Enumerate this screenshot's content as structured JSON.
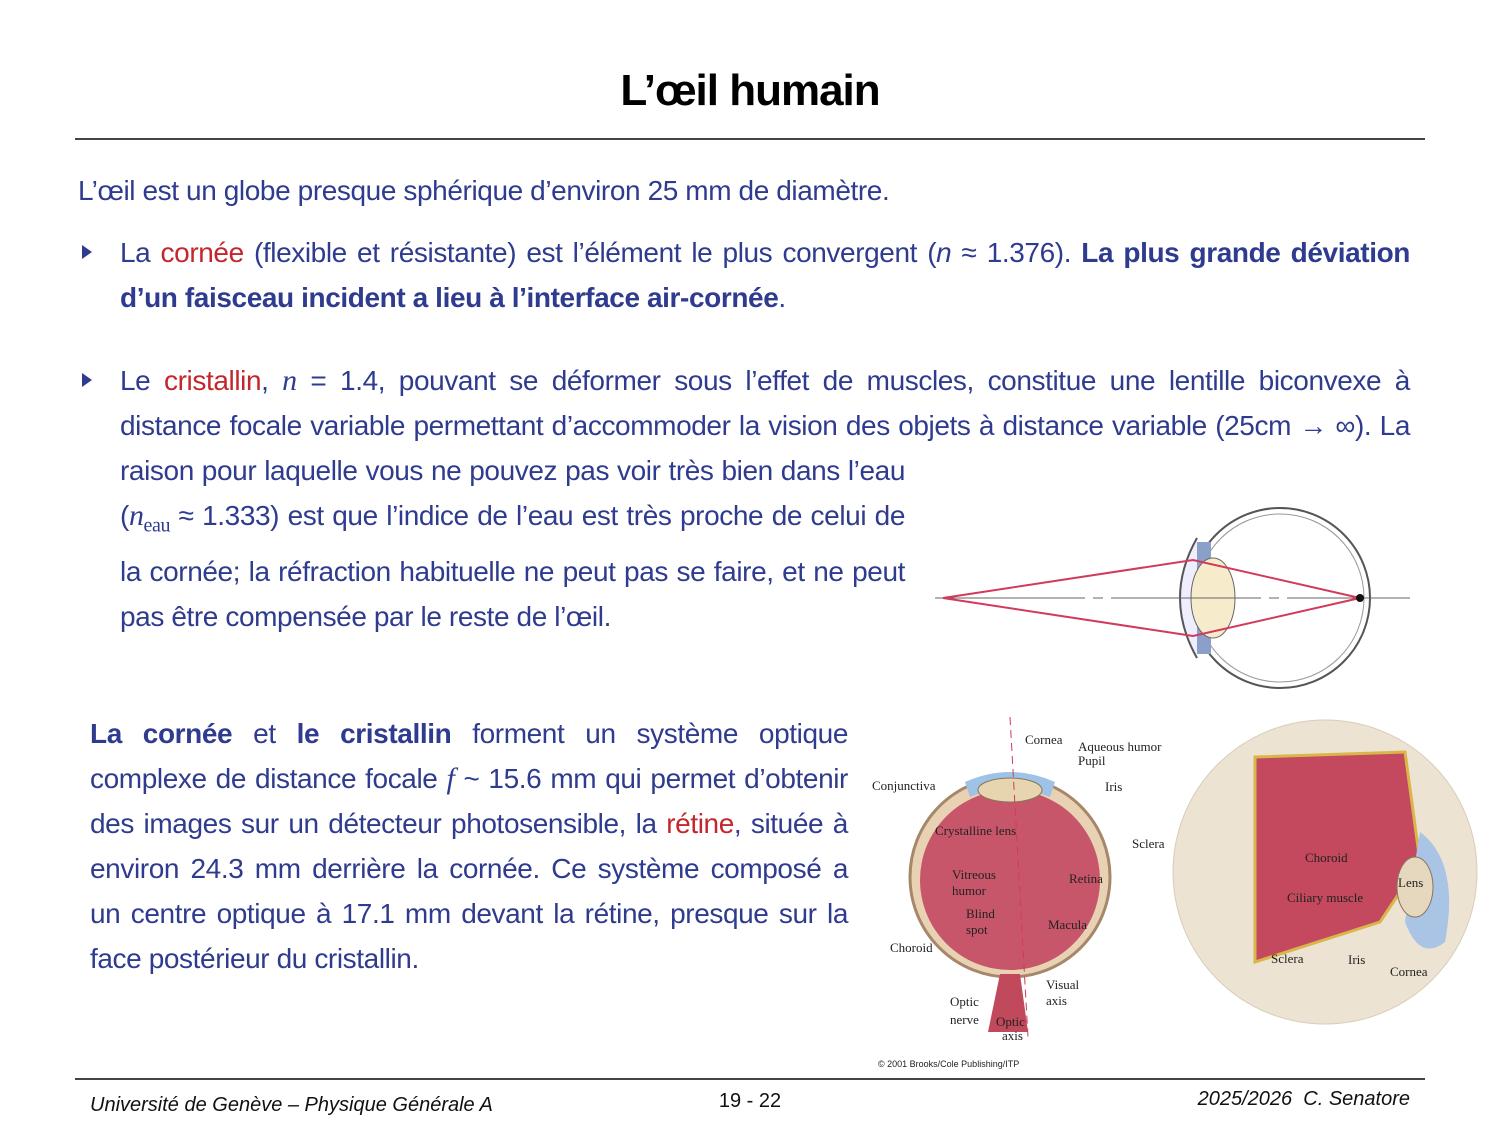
{
  "header": {
    "title": "L’œil humain"
  },
  "intro": "L’œil est un globe presque sphérique d’environ 25 mm de diamètre.",
  "bullets": [
    {
      "parts": [
        "La ",
        "cornée",
        " (flexible et résistante) est l’élément le plus convergent (",
        "n",
        " ≈ 1.376). ",
        "La plus grande déviation d’un faisceau incident a lieu à l’interface air-cornée",
        "."
      ]
    },
    {
      "parts": [
        "Le ",
        "cristallin",
        ", ",
        "n",
        " = 1.4, pouvant se déformer sous l’effet de muscles, constitue une lentille biconvexe à distance focale variable permettant d’accommoder la vision des objets à distance variable (25cm → ∞). La raison pour laquelle vous ne pouvez pas voir très bien dans l’eau (",
        "n",
        "eau",
        " ≈ 1.333) est que l’indice de l’eau est très proche de celui de la cornée; la réfraction habituelle ne peut pas se faire, et ne peut pas être compensée par le reste de l’œil."
      ]
    }
  ],
  "paragraph": {
    "parts": [
      "La cornée",
      " et ",
      "le cristallin",
      " forment un système optique complexe de distance focale ",
      "f",
      " ~ 15.6 mm qui permet d’obtenir des images sur un détecteur photosensible, la ",
      "rétine",
      ", située à environ 24.3 mm derrière la cornée. Ce système composé a un centre optique à 17.1 mm devant la rétine, presque sur la face postérieur du cristallin."
    ]
  },
  "figure": {
    "left_labels": [
      "Cornea",
      "Aqueous humor",
      "Pupil",
      "Conjunctiva",
      "Iris",
      "Crystalline lens",
      "Sclera",
      "Vitreous",
      "humor",
      "Retina",
      "Blind",
      "spot",
      "Macula",
      "Choroid",
      "Visual",
      "axis",
      "Optic",
      "nerve",
      "Optic",
      "axis"
    ],
    "right_labels": [
      "Choroid",
      "Lens",
      "Ciliary muscle",
      "Sclera",
      "Iris",
      "Cornea"
    ],
    "credit": "© 2001 Brooks/Cole Publishing/ITP"
  },
  "footer": {
    "left": "Université de Genève – Physique Générale A",
    "center": "19 - 22",
    "right": "2025/2026  C. Senatore"
  }
}
